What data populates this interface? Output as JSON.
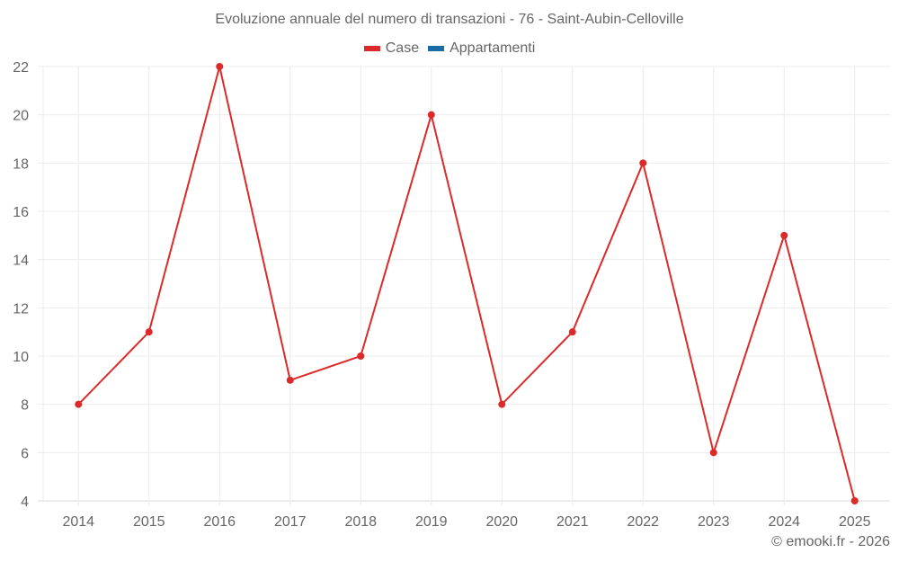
{
  "chart_data": {
    "type": "line",
    "title": "Evoluzione annuale del numero di transazioni - 76 - Saint-Aubin-Celloville",
    "xlabel": "",
    "ylabel": "",
    "categories": [
      "2014",
      "2015",
      "2016",
      "2017",
      "2018",
      "2019",
      "2020",
      "2021",
      "2022",
      "2023",
      "2024",
      "2025"
    ],
    "series": [
      {
        "name": "Case",
        "color": "#dc2a2a",
        "values": [
          8,
          11,
          22,
          9,
          10,
          20,
          8,
          11,
          18,
          6,
          15,
          4
        ]
      },
      {
        "name": "Appartamenti",
        "color": "#1a6aa6",
        "values": []
      }
    ],
    "ylim": [
      4,
      22
    ],
    "yticks": [
      4,
      6,
      8,
      10,
      12,
      14,
      16,
      18,
      20,
      22
    ],
    "grid": true,
    "legend_position": "top"
  },
  "legend": {
    "items": [
      {
        "label": "Case",
        "color": "#dc2a2a"
      },
      {
        "label": "Appartamenti",
        "color": "#1a6aa6"
      }
    ]
  },
  "credit": "© emooki.fr - 2026"
}
